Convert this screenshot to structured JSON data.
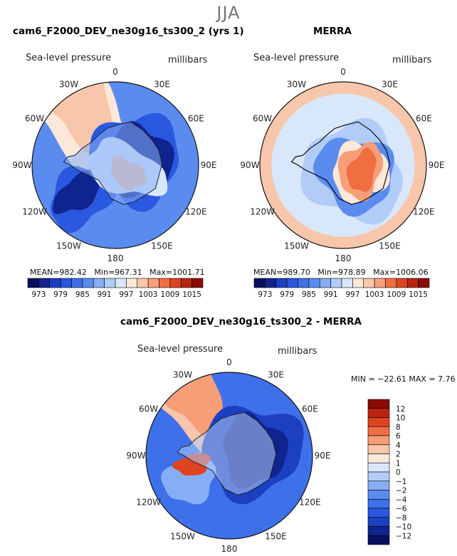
{
  "season": "JJA",
  "panels": [
    {
      "title": "cam6_F2000_DEV_ne30g16_ts300_2 (yrs 1)",
      "variable": "Sea-level pressure",
      "units": "millibars",
      "stats": {
        "mean_label": "MEAN=",
        "mean": "982.42",
        "min_label": "Min=",
        "min": "967.31",
        "max_label": "Max=",
        "max": "1001.71"
      }
    },
    {
      "title": "MERRA",
      "variable": "Sea-level pressure",
      "units": "millibars",
      "stats": {
        "mean_label": "MEAN=",
        "mean": "989.70",
        "min_label": "Min=",
        "min": "978.89",
        "max_label": "Max=",
        "max": "1006.06"
      }
    },
    {
      "title": "cam6_F2000_DEV_ne30g16_ts300_2 - MERRA",
      "variable": "Sea-level pressure",
      "units": "millibars",
      "stats_text": "MIN = −22.61  MAX =    7.76"
    }
  ],
  "longitude_labels": [
    "0",
    "30E",
    "60E",
    "90E",
    "120E",
    "150E",
    "180",
    "150W",
    "120W",
    "90W",
    "60W",
    "30W"
  ],
  "chart_data": [
    {
      "type": "heatmap",
      "title": "cam6_F2000_DEV_ne30g16_ts300_2 (yrs 1)",
      "projection": "south polar stereographic",
      "field": "Sea-level pressure",
      "units": "millibars",
      "mean": 982.42,
      "min": 967.31,
      "max": 1001.71,
      "colorbar_levels": [
        973,
        976,
        979,
        982,
        985,
        988,
        991,
        994,
        997,
        1000,
        1003,
        1006,
        1009,
        1012,
        1015
      ],
      "colorbar_labels": [
        "973",
        "979",
        "985",
        "991",
        "997",
        "1003",
        "1009",
        "1015"
      ]
    },
    {
      "type": "heatmap",
      "title": "MERRA",
      "projection": "south polar stereographic",
      "field": "Sea-level pressure",
      "units": "millibars",
      "mean": 989.7,
      "min": 978.89,
      "max": 1006.06,
      "colorbar_levels": [
        973,
        976,
        979,
        982,
        985,
        988,
        991,
        994,
        997,
        1000,
        1003,
        1006,
        1009,
        1012,
        1015
      ],
      "colorbar_labels": [
        "973",
        "979",
        "985",
        "991",
        "997",
        "1003",
        "1009",
        "1015"
      ]
    },
    {
      "type": "heatmap",
      "title": "cam6_F2000_DEV_ne30g16_ts300_2 - MERRA",
      "projection": "south polar stereographic",
      "field": "Sea-level pressure difference",
      "units": "millibars",
      "min": -22.61,
      "max": 7.76,
      "colorbar_levels": [
        -12,
        -10,
        -8,
        -6,
        -4,
        -2,
        -1,
        0,
        1,
        2,
        4,
        6,
        8,
        10,
        12
      ],
      "colorbar_labels": [
        "12",
        "10",
        "8",
        "6",
        "4",
        "2",
        "1",
        "0",
        "−1",
        "−2",
        "−4",
        "−6",
        "−8",
        "−10",
        "−12"
      ]
    }
  ],
  "colors": {
    "scale": [
      "#08105e",
      "#10248f",
      "#1d3fc2",
      "#2a58e0",
      "#3e70ea",
      "#5a8cf0",
      "#86aef5",
      "#b2ccf8",
      "#d9e7fb",
      "#fbe8d8",
      "#f8c6aa",
      "#f59e78",
      "#ef6e42",
      "#df4420",
      "#bb2410",
      "#8a0a04"
    ],
    "coast": "#000000",
    "grid": "#111111"
  }
}
